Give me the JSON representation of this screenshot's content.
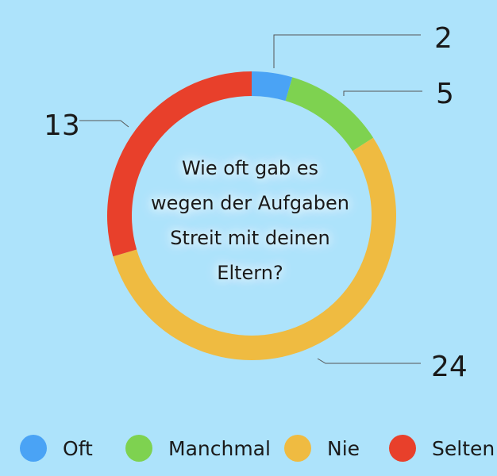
{
  "chart_data": {
    "type": "pie",
    "donut": true,
    "title": "Wie oft gab es wegen der Aufgaben Streit mit deinen Eltern?",
    "slices": [
      {
        "label": "Oft",
        "value": 2,
        "color": "#4aa3f5"
      },
      {
        "label": "Manchmal",
        "value": 5,
        "color": "#7ed250"
      },
      {
        "label": "Nie",
        "value": 24,
        "color": "#efbb41"
      },
      {
        "label": "Selten",
        "value": 13,
        "color": "#e8402b"
      }
    ],
    "legend_position": "bottom"
  }
}
